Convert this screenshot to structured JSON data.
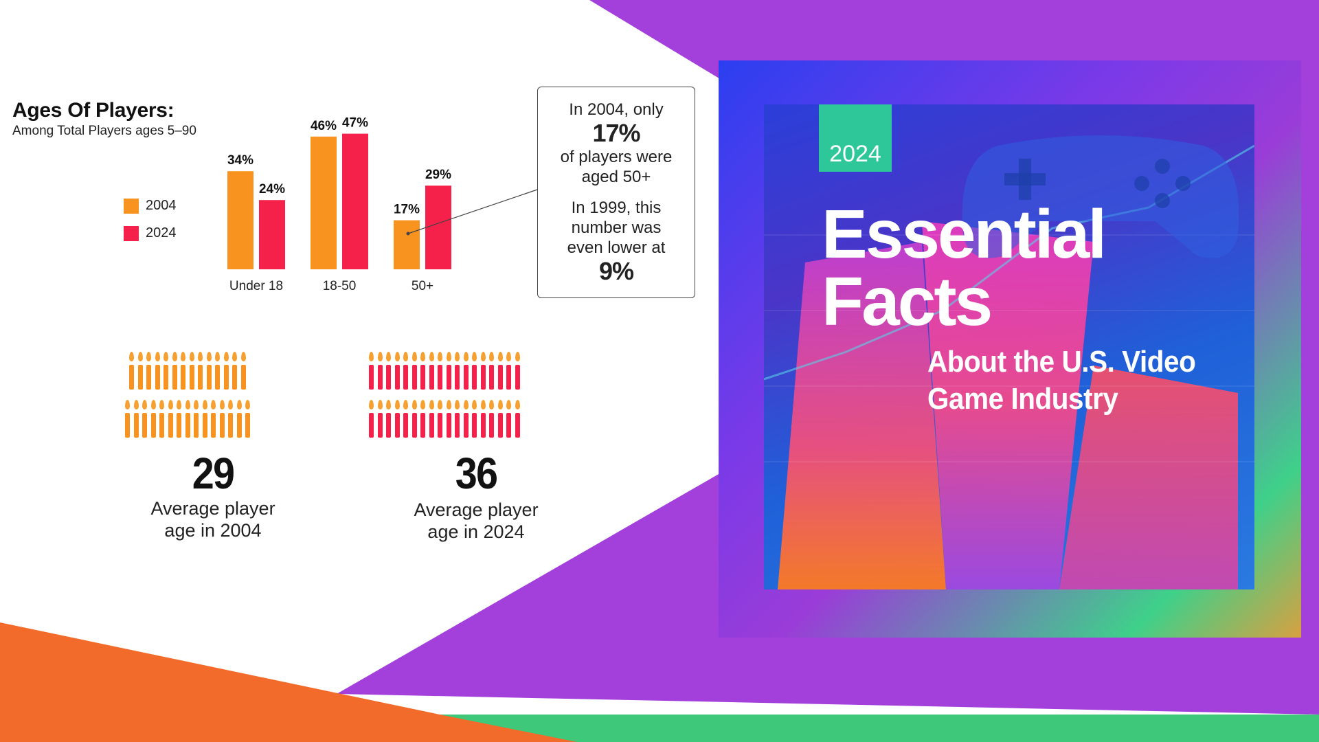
{
  "colors": {
    "series_2004": "#f7931e",
    "series_2024": "#f6214a",
    "purple": "#a33fdb",
    "orange": "#f26b2a",
    "green": "#3ec87a",
    "teal_badge": "#2ec79a"
  },
  "chart_data": {
    "type": "bar",
    "title": "Ages Of Players:",
    "subtitle": "Among Total Players ages 5–90",
    "categories": [
      "Under 18",
      "18-50",
      "50+"
    ],
    "series": [
      {
        "name": "2004",
        "values": [
          34,
          46,
          17
        ],
        "labels": [
          "34%",
          "46%",
          "17%"
        ]
      },
      {
        "name": "2024",
        "values": [
          24,
          47,
          29
        ],
        "labels": [
          "24%",
          "47%",
          "29%"
        ]
      }
    ],
    "ylim": [
      0,
      50
    ],
    "legend_position": "left"
  },
  "callout": {
    "line1": "In 2004, only",
    "value1": "17%",
    "line2": "of players were",
    "line3": "aged 50+",
    "line4": "In 1999, this",
    "line5": "number was",
    "line6": "even lower at",
    "value2": "9%"
  },
  "stats": [
    {
      "value": "29",
      "label_line1": "Average player",
      "label_line2": "age in 2004",
      "candles": 29
    },
    {
      "value": "36",
      "label_line1": "Average player",
      "label_line2": "age in 2024",
      "candles": 36
    }
  ],
  "cover": {
    "year": "2024",
    "title_line1": "Essential",
    "title_line2": "Facts",
    "subtitle_line1": "About the U.S. Video",
    "subtitle_line2": "Game Industry",
    "icon": "gamepad-icon"
  }
}
